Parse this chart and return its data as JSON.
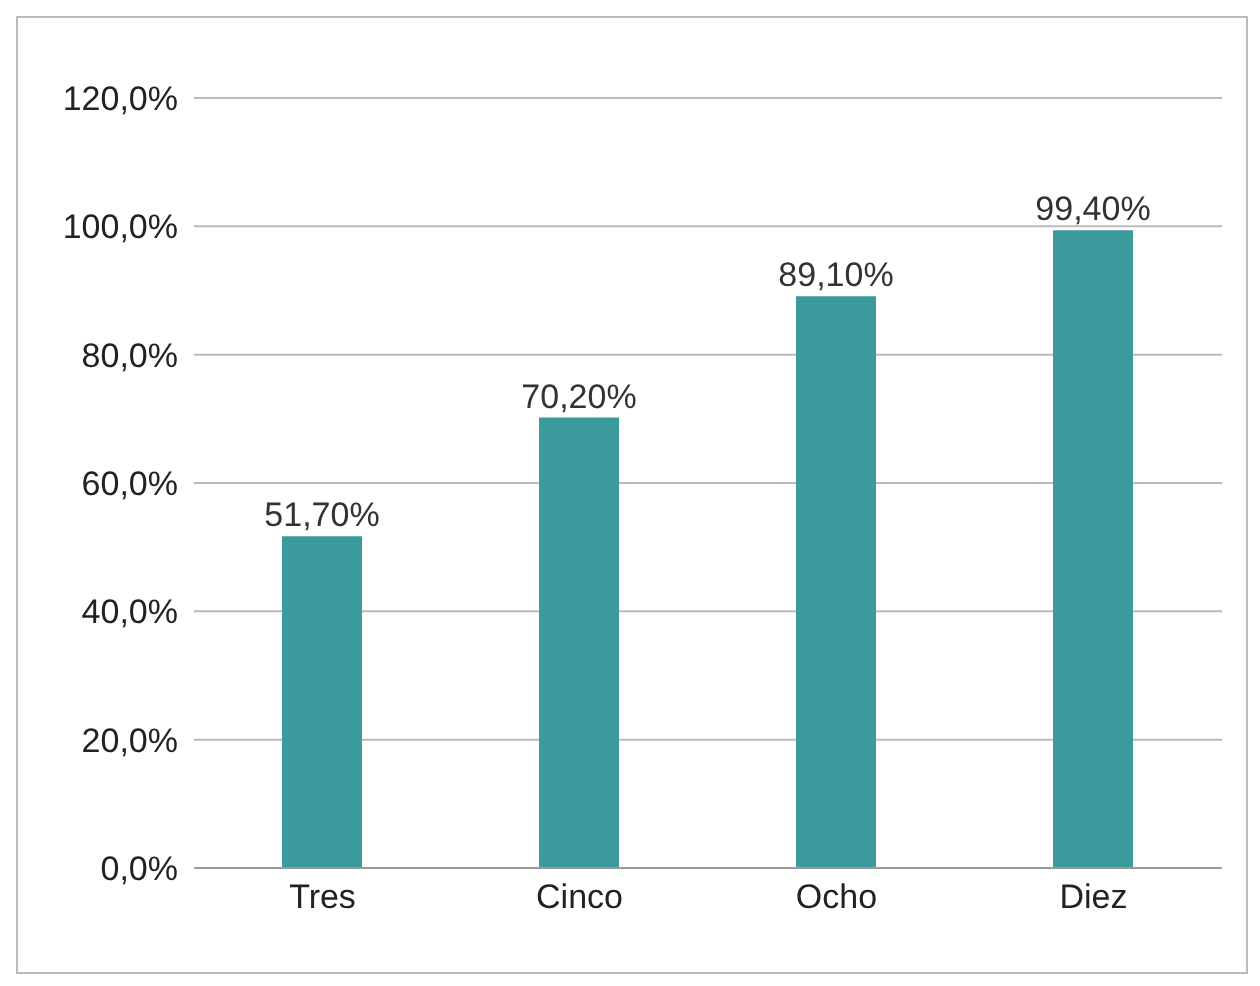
{
  "chart_data": {
    "type": "bar",
    "categories": [
      "Tres",
      "Cinco",
      "Ocho",
      "Diez"
    ],
    "values": [
      51.7,
      70.2,
      89.1,
      99.4
    ],
    "value_labels": [
      "51,70%",
      "70,20%",
      "89,10%",
      "99,40%"
    ],
    "color": "#3a9a9c",
    "ylim": [
      0,
      120
    ],
    "yticks": [
      {
        "value": 0,
        "label": "0,0%"
      },
      {
        "value": 20,
        "label": "20,0%"
      },
      {
        "value": 40,
        "label": "40,0%"
      },
      {
        "value": 60,
        "label": "60,0%"
      },
      {
        "value": 80,
        "label": "80,0%"
      },
      {
        "value": 100,
        "label": "100,0%"
      },
      {
        "value": 120,
        "label": "120,0%"
      }
    ],
    "grid": "y",
    "legend": false
  }
}
